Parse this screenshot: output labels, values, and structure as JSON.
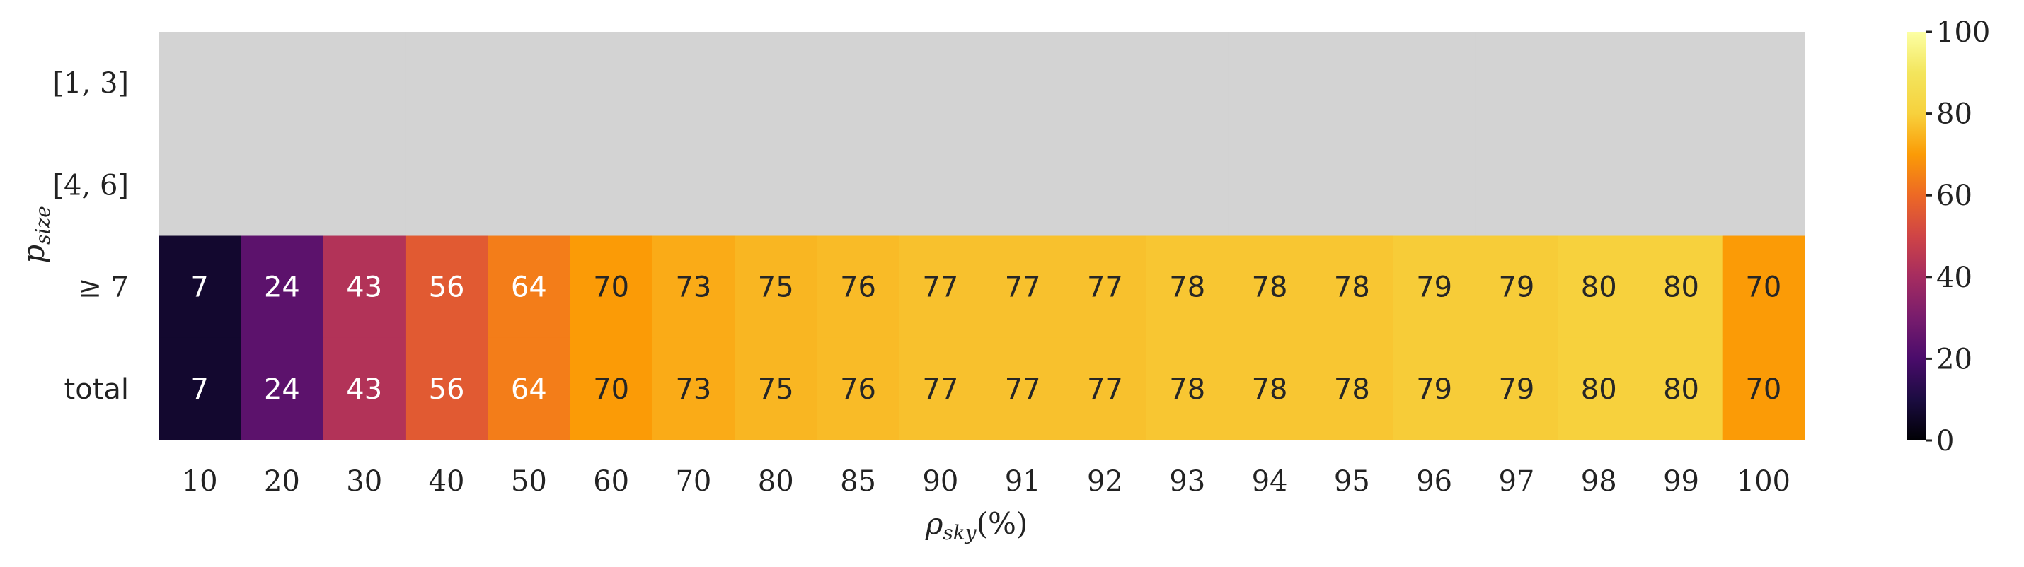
{
  "chart_data": {
    "type": "heatmap",
    "x_categories": [
      "10",
      "20",
      "30",
      "40",
      "50",
      "60",
      "70",
      "80",
      "85",
      "90",
      "91",
      "92",
      "93",
      "94",
      "95",
      "96",
      "97",
      "98",
      "99",
      "100"
    ],
    "y_categories": [
      "[1, 3]",
      "[4, 6]",
      "≥ 7",
      "total"
    ],
    "values": [
      [
        null,
        null,
        null,
        null,
        null,
        null,
        null,
        null,
        null,
        null,
        null,
        null,
        null,
        null,
        null,
        null,
        null,
        null,
        null,
        null
      ],
      [
        null,
        null,
        null,
        null,
        null,
        null,
        null,
        null,
        null,
        null,
        null,
        null,
        null,
        null,
        null,
        null,
        null,
        null,
        null,
        null
      ],
      [
        7,
        24,
        43,
        56,
        64,
        70,
        73,
        75,
        76,
        77,
        77,
        77,
        78,
        78,
        78,
        79,
        79,
        80,
        80,
        70
      ],
      [
        7,
        24,
        43,
        56,
        64,
        70,
        73,
        75,
        76,
        77,
        77,
        77,
        78,
        78,
        78,
        79,
        79,
        80,
        80,
        70
      ]
    ],
    "xlabel": "ρsky(%)",
    "xlabel_main": "ρ",
    "xlabel_sub": "sky",
    "xlabel_suffix": "(%)",
    "ylabel": "psize",
    "ylabel_main": "p",
    "ylabel_sub": "size",
    "colormap": "inferno",
    "missing_color": "#d3d3d3",
    "vmin": 0,
    "vmax": 100,
    "colorbar_ticks": [
      0,
      20,
      40,
      60,
      80,
      100
    ],
    "annotate": true
  }
}
